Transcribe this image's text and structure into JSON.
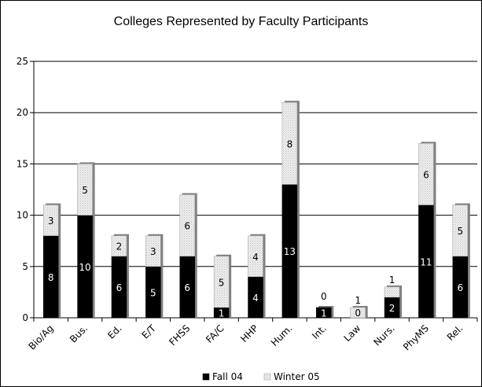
{
  "chart_data": {
    "type": "bar",
    "stacked": true,
    "title": "Colleges Represented by Faculty Participants",
    "categories": [
      "Bio/Ag",
      "Bus.",
      "Ed.",
      "E/T",
      "FHSS",
      "FA/C",
      "HHP",
      "Hum.",
      "Int.",
      "Law",
      "Nurs.",
      "PhyMS",
      "Rel."
    ],
    "series": [
      {
        "name": "Fall 04",
        "values": [
          8,
          10,
          6,
          5,
          6,
          1,
          4,
          13,
          1,
          0,
          2,
          11,
          6
        ],
        "color": "#000000"
      },
      {
        "name": "Winter 05",
        "values": [
          3,
          5,
          2,
          3,
          6,
          5,
          4,
          8,
          0,
          1,
          1,
          6,
          5
        ],
        "color": "#dcdcdc"
      }
    ],
    "ylim": [
      0,
      25
    ],
    "yticks": [
      0,
      5,
      10,
      15,
      20,
      25
    ],
    "xlabel": "",
    "ylabel": "",
    "grid": "horizontal",
    "legend_position": "bottom"
  }
}
